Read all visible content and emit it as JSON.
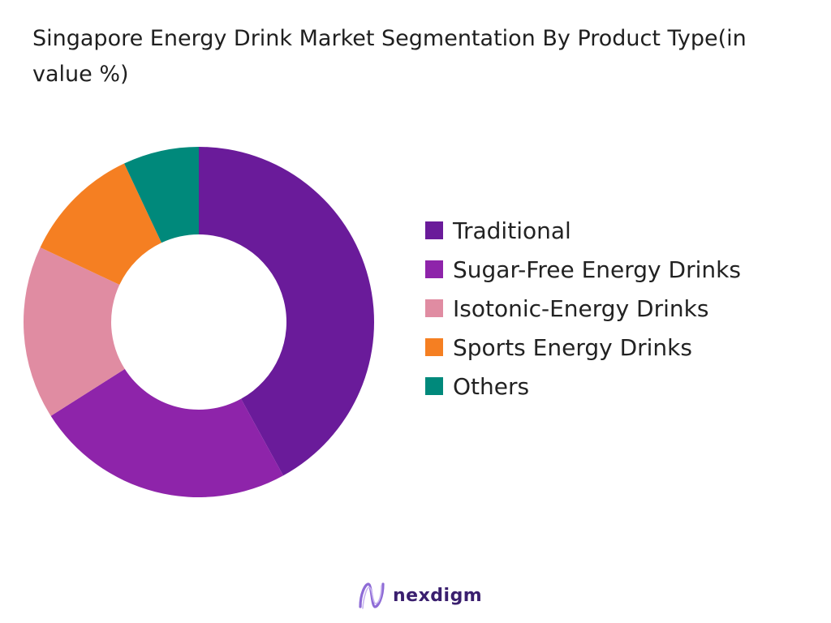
{
  "chart_data": {
    "type": "pie",
    "title": "Singapore Energy Drink Market Segmentation By Product Type(in value %)",
    "categories": [
      "Traditional",
      "Sugar-Free Energy Drinks",
      "Isotonic-Energy Drinks",
      "Sports Energy Drinks",
      "Others"
    ],
    "values": [
      42,
      24,
      16,
      11,
      7
    ],
    "colors": [
      "#6a1b9a",
      "#8e24aa",
      "#e08ca2",
      "#f57f22",
      "#00897b"
    ],
    "legend_position": "right",
    "donut": true
  },
  "brand": {
    "name": "nexdigm",
    "logo_icon": "nexdigm-logo"
  }
}
